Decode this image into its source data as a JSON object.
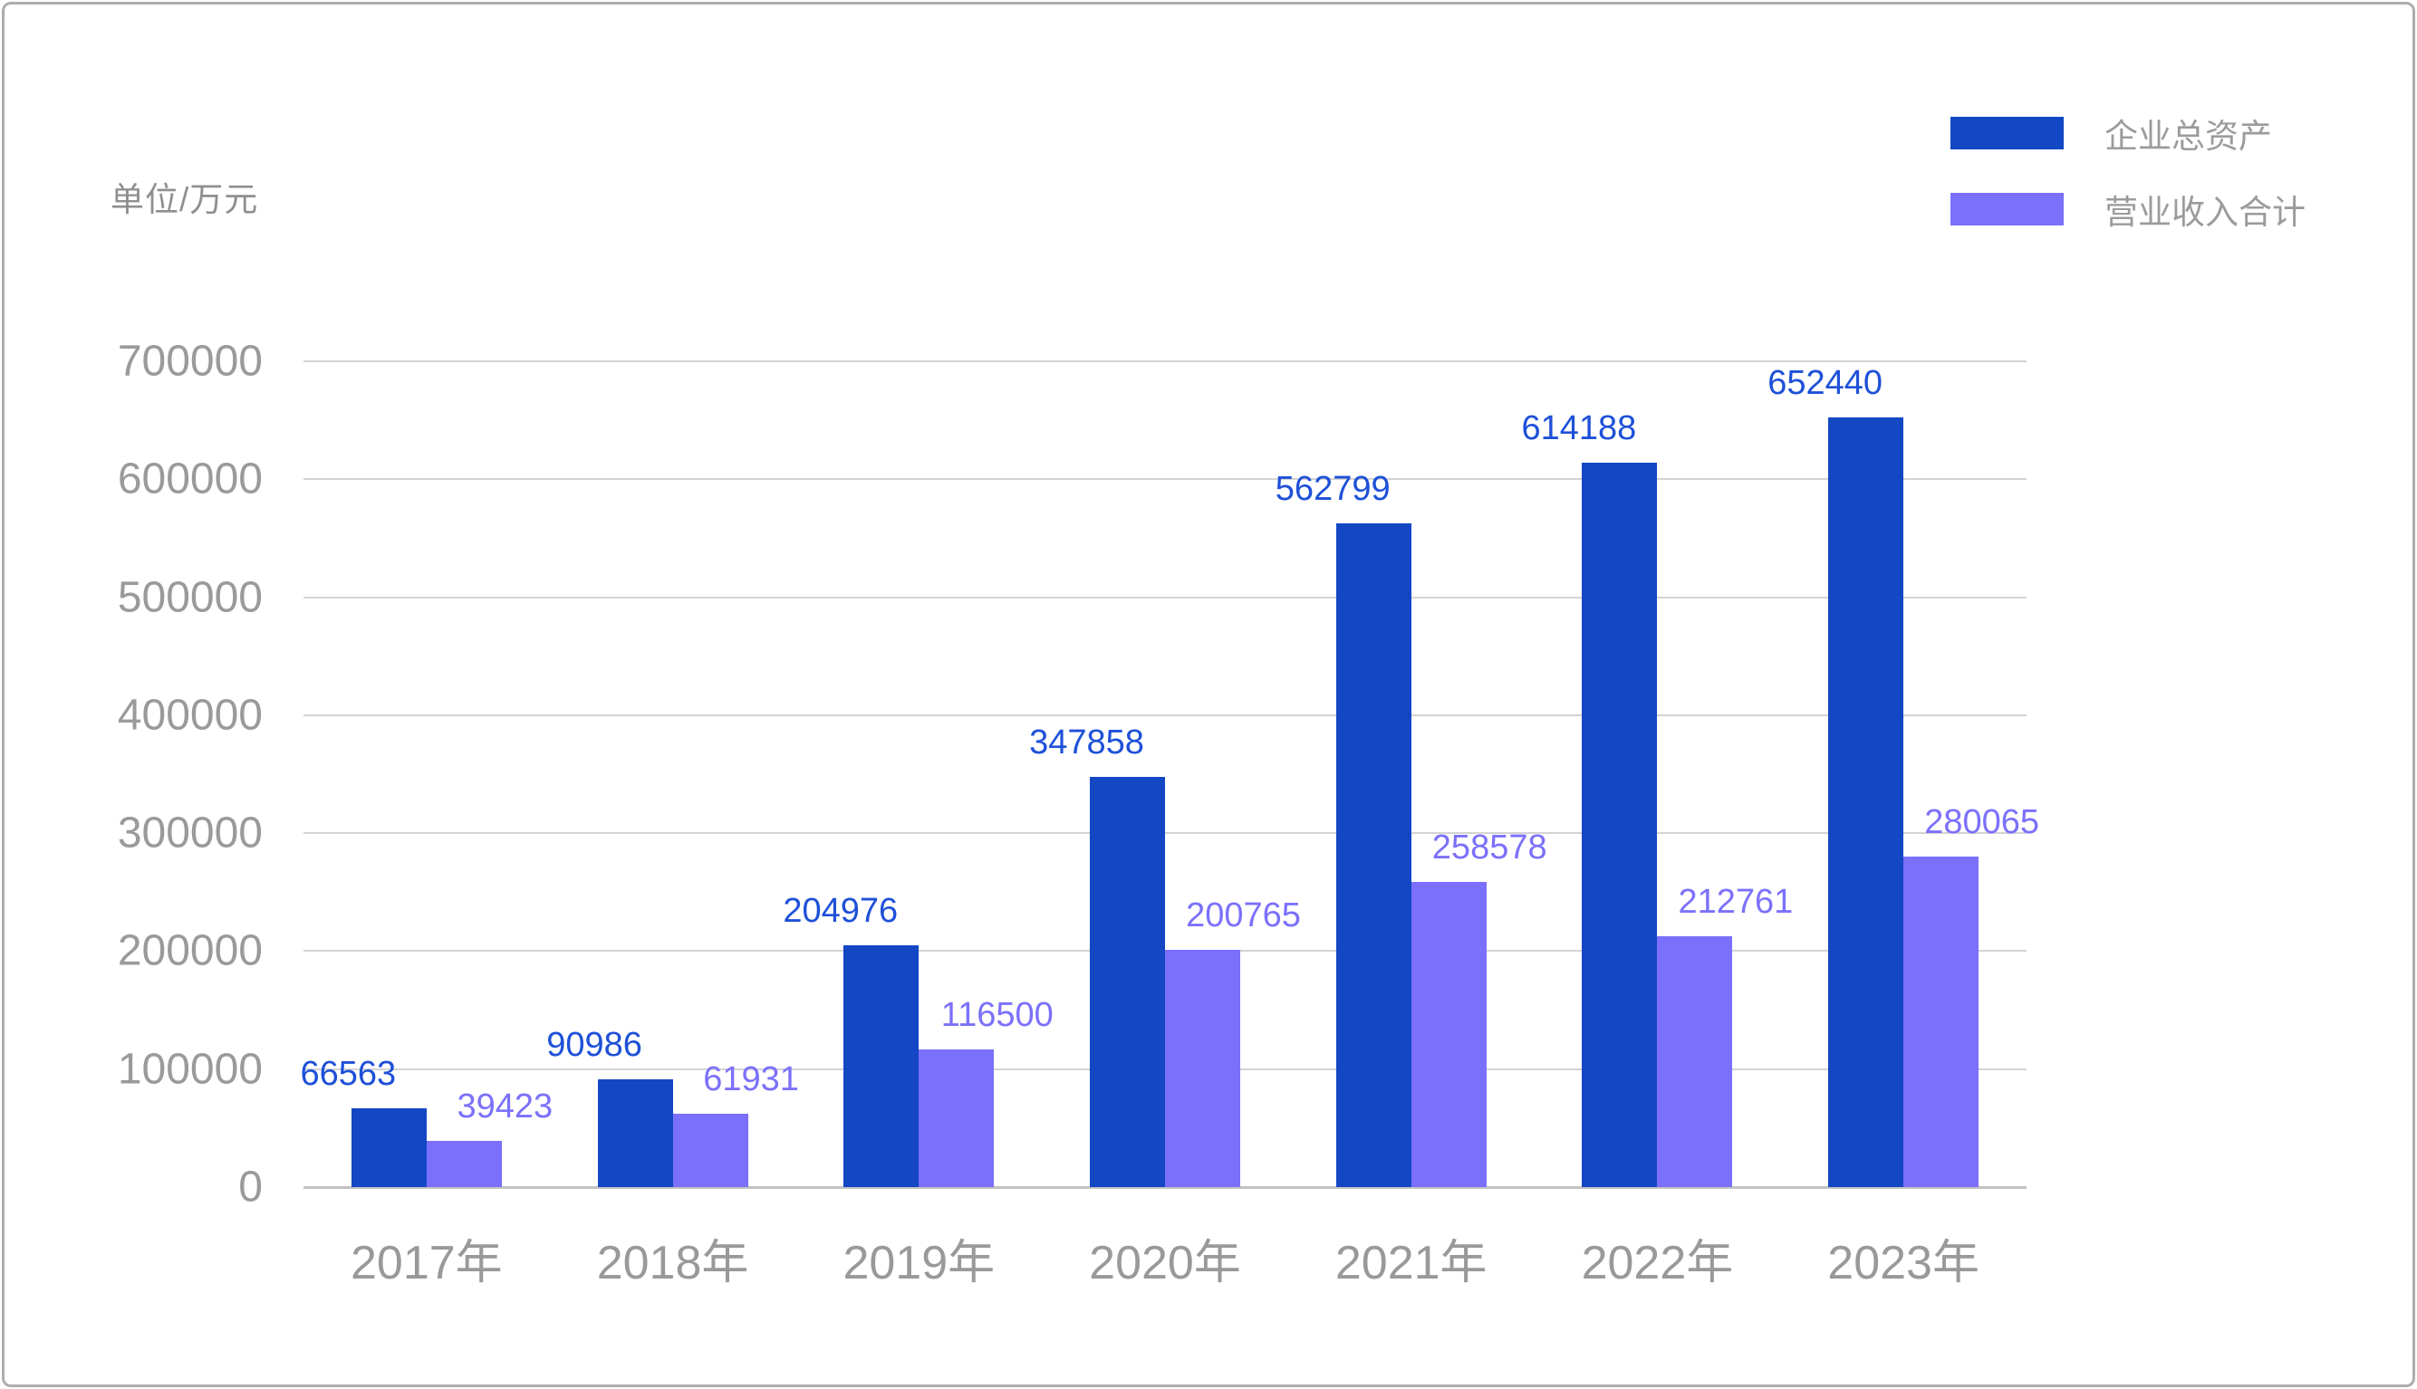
{
  "unit_label": "单位/万元",
  "legend": {
    "position": "top-right",
    "items": [
      {
        "key": "total-assets",
        "label": "企业总资产",
        "color": "#1347c4"
      },
      {
        "key": "revenue",
        "label": "营业收入合计",
        "color": "#7a70fb"
      }
    ]
  },
  "chart_data": {
    "type": "bar",
    "title": "",
    "categories": [
      "2017年",
      "2018年",
      "2019年",
      "2020年",
      "2021年",
      "2022年",
      "2023年"
    ],
    "series": [
      {
        "key": "total-assets",
        "name": "企业总资产",
        "color": "#1347c4",
        "label_color": "#1e50d8",
        "values": [
          66563,
          90986,
          204976,
          347858,
          562799,
          614188,
          652440
        ]
      },
      {
        "key": "revenue",
        "name": "营业收入合计",
        "color": "#7a70fb",
        "label_color": "#7b71fb",
        "values": [
          39423,
          61931,
          116500,
          200765,
          258578,
          212761,
          280065
        ]
      }
    ],
    "xlabel": "",
    "ylabel": "单位/万元",
    "ylim": [
      0,
      700000
    ],
    "y_ticks": [
      0,
      100000,
      200000,
      300000,
      400000,
      500000,
      600000,
      700000
    ],
    "grid": true,
    "legend_position": "top-right",
    "value_labels": true
  },
  "colors": {
    "axis_text": "#9a9a9a",
    "gridline": "#d3d3d3",
    "baseline": "#c3c3c3",
    "frame_border": "#aeaeae",
    "background": "#ffffff"
  }
}
